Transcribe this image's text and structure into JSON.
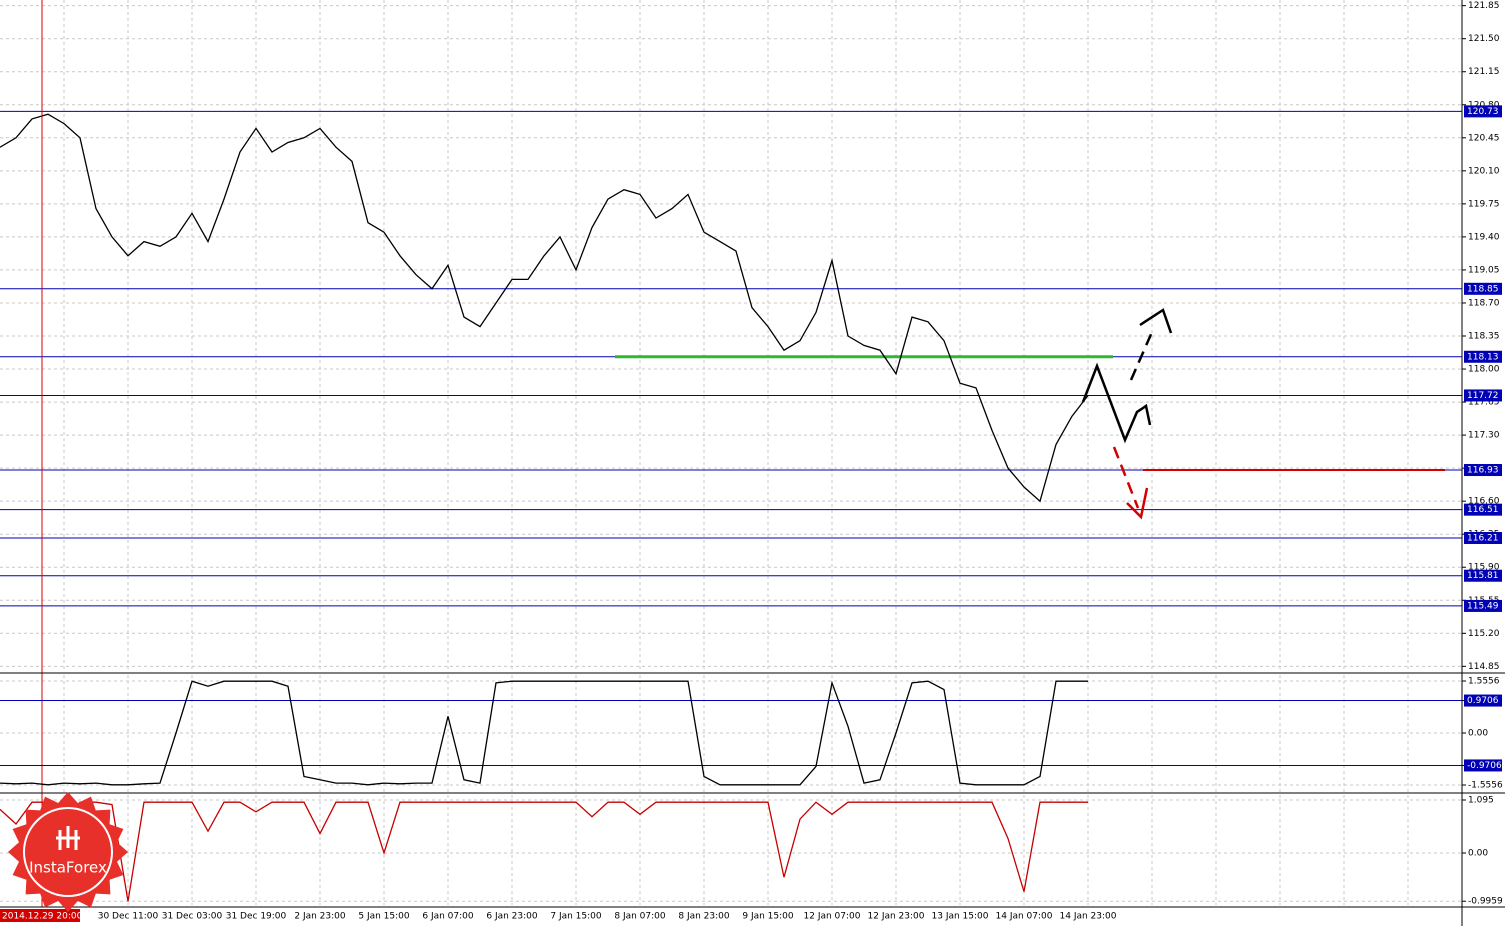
{
  "chart_data": [
    {
      "type": "line",
      "color": "#000000",
      "ylim": [
        114.79,
        121.91
      ],
      "yticks": [
        121.85,
        {
          "value": 121.5,
          "label": "121.50"
        },
        121.15,
        {
          "value": 120.8,
          "label": "120.80"
        },
        120.45,
        {
          "value": 120.1,
          "label": "120.10"
        },
        119.75,
        {
          "value": 119.4,
          "label": "119.40"
        },
        119.05,
        {
          "value": 118.7,
          "label": "118.70"
        },
        118.35,
        {
          "value": 118.0,
          "label": "118.00"
        },
        117.65,
        {
          "value": 117.3,
          "label": "117.30"
        },
        116.95,
        {
          "value": 116.6,
          "label": "116.60"
        },
        116.25,
        {
          "value": 115.9,
          "label": "115.90"
        },
        115.55,
        {
          "value": 115.2,
          "label": "115.20"
        },
        114.85
      ],
      "grid": true,
      "time_labels": [
        "30 Dec 11:00",
        "31 Dec 03:00",
        "31 Dec 19:00",
        "2 Jan 23:00",
        "5 Jan 15:00",
        "6 Jan 07:00",
        "6 Jan 23:00",
        "7 Jan 15:00",
        "8 Jan 07:00",
        "8 Jan 23:00",
        "9 Jan 15:00",
        "12 Jan 07:00",
        "12 Jan 23:00",
        "13 Jan 15:00",
        "14 Jan 07:00",
        "14 Jan 23:00"
      ],
      "marker_label": "2014.12.29 20:00",
      "marker_color": "#d40000",
      "levels": [
        120.73,
        118.85,
        118.13,
        117.72,
        116.93,
        116.51,
        116.21,
        115.81,
        115.49
      ],
      "level_color": "#0000b4",
      "support": {
        "value": 118.13,
        "color": "#2db82d"
      },
      "target": {
        "value": 116.93,
        "color": "#d40000"
      },
      "values": [
        120.35,
        120.45,
        120.65,
        120.7,
        120.6,
        120.45,
        119.7,
        119.4,
        119.2,
        119.35,
        119.3,
        119.4,
        119.65,
        119.35,
        119.8,
        120.3,
        120.55,
        120.3,
        120.4,
        120.45,
        120.55,
        120.35,
        120.2,
        119.55,
        119.45,
        119.2,
        119.0,
        118.85,
        119.1,
        118.55,
        118.45,
        118.7,
        118.95,
        118.95,
        119.2,
        119.4,
        119.05,
        119.5,
        119.8,
        119.9,
        119.85,
        119.6,
        119.7,
        119.85,
        119.45,
        119.35,
        119.25,
        118.65,
        118.45,
        118.2,
        118.3,
        118.6,
        119.15,
        118.35,
        118.25,
        118.2,
        117.95,
        118.55,
        118.5,
        118.3,
        117.85,
        117.8,
        117.35,
        116.95,
        116.75,
        116.6,
        117.2,
        117.5,
        117.72
      ],
      "logo": "InstaForex"
    },
    {
      "type": "line",
      "color": "#000000",
      "ylim": [
        -1.765,
        1.735
      ],
      "grid": true,
      "yticks": [
        1.5556,
        0.9706,
        {
          "value": 0,
          "label": "0.00"
        },
        -0.9706,
        -1.5556
      ],
      "levels": [
        0.9706,
        -0.9706
      ],
      "level_color": "#0000b4",
      "values": [
        -1.5,
        -1.52,
        -1.5,
        -1.55,
        -1.5,
        -1.52,
        -1.5,
        -1.55,
        -1.55,
        -1.52,
        -1.5,
        0.0,
        1.55,
        1.4,
        1.55,
        1.55,
        1.55,
        1.55,
        1.4,
        -1.3,
        -1.4,
        -1.5,
        -1.5,
        -1.55,
        -1.5,
        -1.52,
        -1.5,
        -1.5,
        0.5,
        -1.4,
        -1.5,
        1.5,
        1.55,
        1.55,
        1.55,
        1.55,
        1.55,
        1.55,
        1.55,
        1.55,
        1.55,
        1.55,
        1.55,
        1.55,
        -1.3,
        -1.55,
        -1.55,
        -1.55,
        -1.55,
        -1.55,
        -1.55,
        -1.0,
        1.5,
        0.2,
        -1.5,
        -1.4,
        0.0,
        1.5,
        1.55,
        1.3,
        -1.5,
        -1.55,
        -1.55,
        -1.55,
        -1.55,
        -1.3,
        1.55,
        1.55,
        1.55
      ]
    },
    {
      "type": "line",
      "color": "#c80000",
      "ylim": [
        -1.074,
        1.198
      ],
      "grid": true,
      "yticks": [
        1.095,
        {
          "value": 0,
          "label": "0.00"
        },
        -0.9959
      ],
      "values": [
        0.9,
        0.6,
        1.05,
        1.05,
        0.5,
        1.05,
        1.05,
        1.0,
        -1.0,
        1.05,
        1.05,
        1.05,
        1.05,
        0.45,
        1.05,
        1.05,
        0.85,
        1.05,
        1.05,
        1.05,
        0.4,
        1.05,
        1.05,
        1.05,
        0.0,
        1.05,
        1.05,
        1.05,
        1.05,
        1.05,
        1.05,
        1.05,
        1.05,
        1.05,
        1.05,
        1.05,
        1.05,
        0.75,
        1.05,
        1.05,
        0.8,
        1.05,
        1.05,
        1.05,
        1.05,
        1.05,
        1.05,
        1.05,
        1.05,
        -0.5,
        0.7,
        1.05,
        0.8,
        1.05,
        1.05,
        1.05,
        1.05,
        1.05,
        1.05,
        1.05,
        1.05,
        1.05,
        1.05,
        0.3,
        -0.8,
        1.05,
        1.05,
        1.05,
        1.05
      ]
    }
  ]
}
